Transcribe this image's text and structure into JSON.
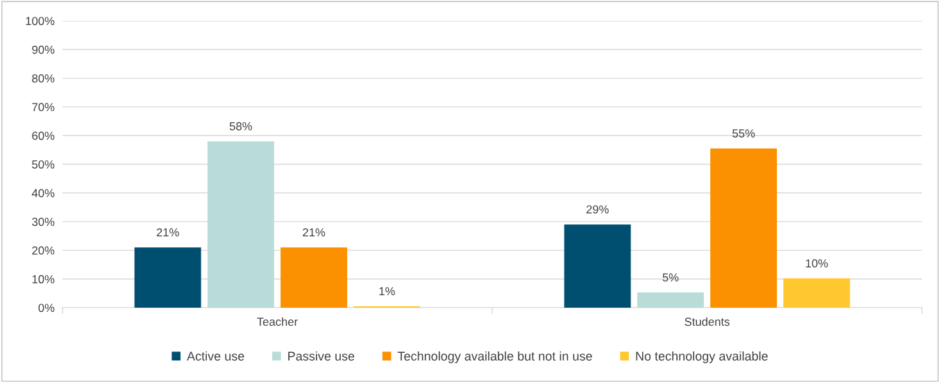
{
  "chart_data": {
    "type": "bar",
    "categories": [
      "Teacher",
      "Students"
    ],
    "series": [
      {
        "name": "Active use",
        "color": "#004f71",
        "values": [
          21,
          29
        ],
        "value_labels": [
          "21%",
          "29%"
        ]
      },
      {
        "name": "Passive use",
        "color": "#b9dcd8",
        "values": [
          58,
          5.3
        ],
        "value_labels": [
          "58%",
          "5%"
        ]
      },
      {
        "name": "Technology available but not in use",
        "color": "#fb9000",
        "values": [
          21,
          55.5
        ],
        "value_labels": [
          "21%",
          "55%"
        ]
      },
      {
        "name": "No technology available",
        "color": "#ffc82e",
        "values": [
          0.5,
          10.2
        ],
        "value_labels": [
          "1%",
          "10%"
        ]
      }
    ],
    "ylim": [
      0,
      100
    ],
    "yticks": [
      {
        "value": 0,
        "label": "0%"
      },
      {
        "value": 10,
        "label": "10%"
      },
      {
        "value": 20,
        "label": "20%"
      },
      {
        "value": 30,
        "label": "30%"
      },
      {
        "value": 40,
        "label": "40%"
      },
      {
        "value": 50,
        "label": "50%"
      },
      {
        "value": 60,
        "label": "60%"
      },
      {
        "value": 70,
        "label": "70%"
      },
      {
        "value": 80,
        "label": "80%"
      },
      {
        "value": 90,
        "label": "90%"
      },
      {
        "value": 100,
        "label": "100%"
      }
    ],
    "grid": "y",
    "legend": "bottom"
  }
}
